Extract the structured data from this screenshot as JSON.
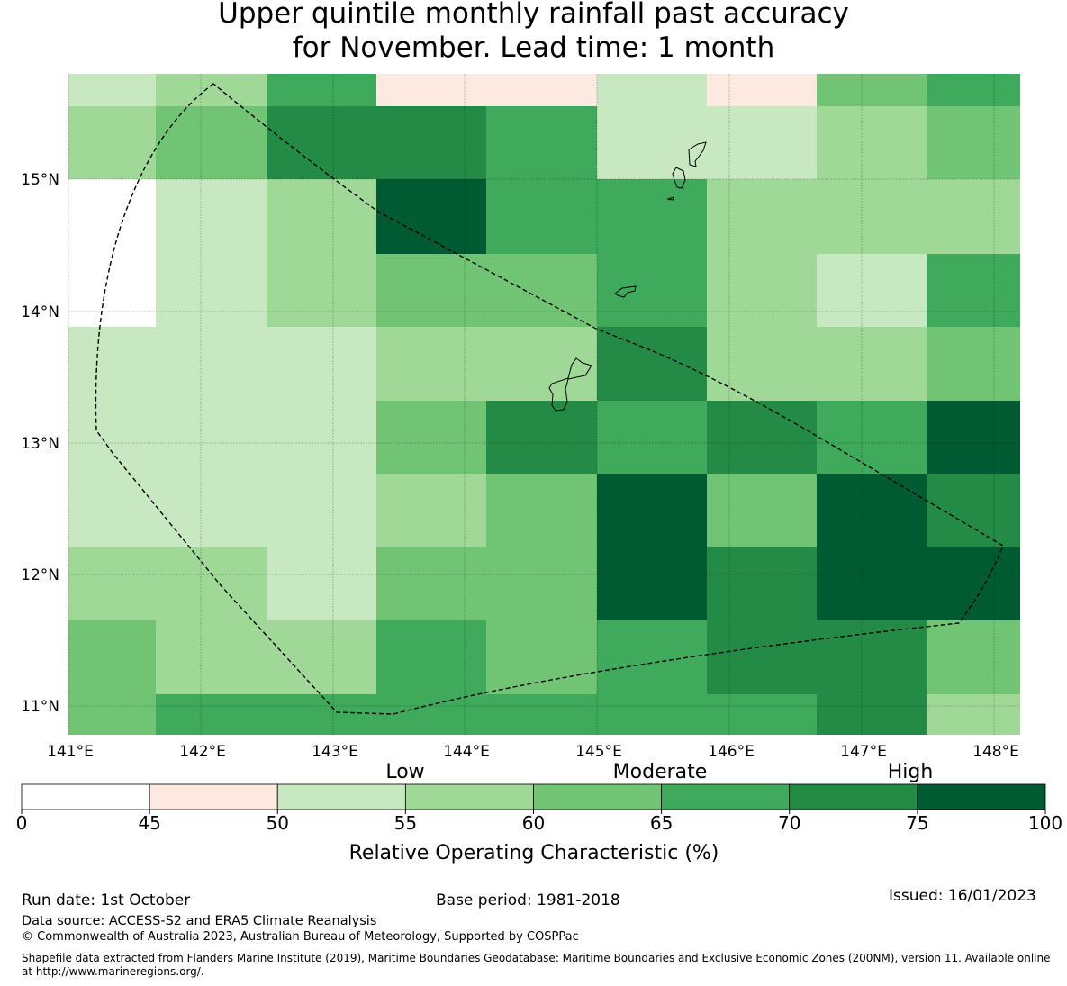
{
  "title": {
    "line1": "Upper quintile monthly rainfall past accuracy",
    "line2": "for November. Lead time: 1 month"
  },
  "map": {
    "lon_labels": [
      "141°E",
      "142°E",
      "143°E",
      "144°E",
      "145°E",
      "146°E",
      "147°E",
      "148°E"
    ],
    "lat_labels": [
      "15°N",
      "14°N",
      "13°N",
      "12°N",
      "11°N"
    ],
    "grid_roc_bins": [
      [
        "50-55",
        "55-60",
        "65-70",
        "45-50",
        "45-50",
        "50-55",
        "45-50",
        "60-65",
        "65-70"
      ],
      [
        "55-60",
        "60-65",
        "70-75",
        "70-75",
        "65-70",
        "50-55",
        "50-55",
        "55-60",
        "60-65"
      ],
      [
        "0-45",
        "50-55",
        "55-60",
        "75-100",
        "65-70",
        "65-70",
        "55-60",
        "55-60",
        "55-60"
      ],
      [
        "0-45",
        "50-55",
        "55-60",
        "60-65",
        "60-65",
        "65-70",
        "55-60",
        "50-55",
        "65-70"
      ],
      [
        "50-55",
        "50-55",
        "50-55",
        "55-60",
        "55-60",
        "70-75",
        "55-60",
        "55-60",
        "60-65"
      ],
      [
        "50-55",
        "50-55",
        "50-55",
        "60-65",
        "70-75",
        "65-70",
        "70-75",
        "65-70",
        "75-100"
      ],
      [
        "50-55",
        "50-55",
        "50-55",
        "55-60",
        "60-65",
        "75-100",
        "60-65",
        "75-100",
        "70-75"
      ],
      [
        "55-60",
        "55-60",
        "50-55",
        "60-65",
        "60-65",
        "75-100",
        "70-75",
        "75-100",
        "75-100"
      ],
      [
        "60-65",
        "55-60",
        "55-60",
        "65-70",
        "60-65",
        "65-70",
        "70-75",
        "70-75",
        "60-65"
      ],
      [
        "60-65",
        "65-70",
        "65-70",
        "65-70",
        "65-70",
        "65-70",
        "65-70",
        "70-75",
        "55-60"
      ]
    ],
    "eez_boundary": "dashed",
    "islands": [
      "Guam",
      "Rota",
      "Tinian",
      "Saipan"
    ]
  },
  "colorbar": {
    "category_labels": [
      "Low",
      "Moderate",
      "High"
    ],
    "ticks": [
      "0",
      "45",
      "50",
      "55",
      "60",
      "65",
      "70",
      "75",
      "100"
    ],
    "bins": [
      {
        "range": "0-45",
        "color": "#ffffff"
      },
      {
        "range": "45-50",
        "color": "#fee9e0"
      },
      {
        "range": "50-55",
        "color": "#c7e8c0"
      },
      {
        "range": "55-60",
        "color": "#a0d898"
      },
      {
        "range": "60-65",
        "color": "#72c475"
      },
      {
        "range": "65-70",
        "color": "#3fa95c"
      },
      {
        "range": "70-75",
        "color": "#248b46"
      },
      {
        "range": "75-100",
        "color": "#005b32"
      }
    ],
    "axis_label": "Relative Operating Characteristic (%)"
  },
  "footer": {
    "run_date": "Run date: 1st October",
    "base_period": "Base period: 1981-2018",
    "issued": "Issued: 16/01/2023",
    "data_source": "Data source: ACCESS-S2 and ERA5 Climate Reanalysis",
    "copyright": "© Commonwealth of Australia 2023, Australian Bureau of Meteorology, Supported by COSPPac",
    "shapefile_line1": "Shapefile data extracted from Flanders Marine Institute (2019), Maritime Boundaries Geodatabase: Maritime Boundaries and Exclusive Economic Zones (200NM), version 11. Available online",
    "shapefile_line2": "at http://www.marineregions.org/."
  }
}
